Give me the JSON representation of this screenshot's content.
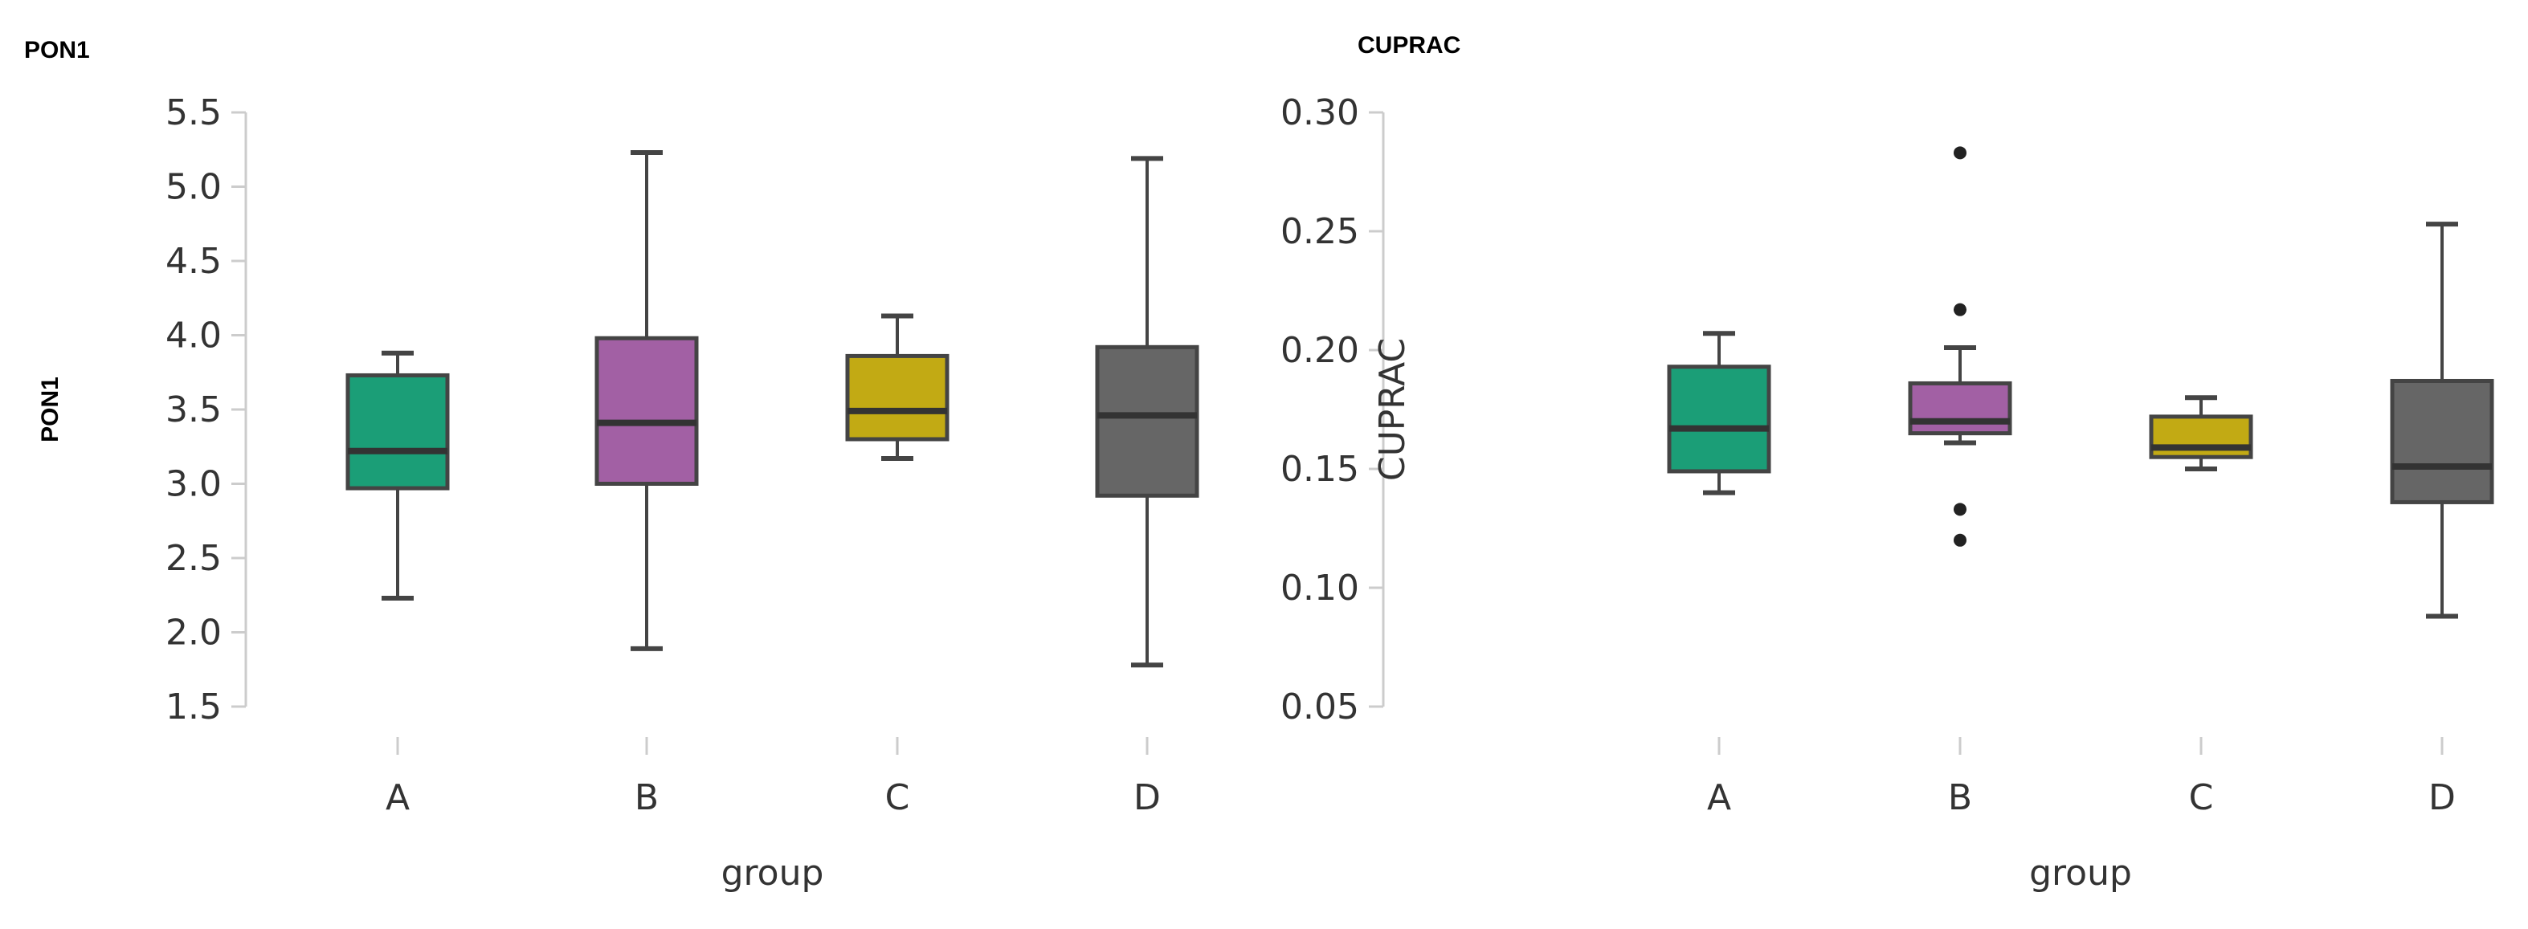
{
  "chart_data": [
    {
      "type": "box",
      "title": "PON1",
      "xlabel": "group",
      "ylabel": "PON1",
      "ylim": [
        1.5,
        5.5
      ],
      "yticks": [
        "1.5",
        "2.0",
        "2.5",
        "3.0",
        "3.5",
        "4.0",
        "4.5",
        "5.0",
        "5.5"
      ],
      "categories": [
        "A",
        "B",
        "C",
        "D"
      ],
      "colors": [
        "#1b9e77",
        "#a260a4",
        "#c2aa14",
        "#666666"
      ],
      "boxes": [
        {
          "whisker_low": 2.23,
          "q1": 2.97,
          "median": 3.22,
          "q3": 3.73,
          "whisker_high": 3.88,
          "outliers": []
        },
        {
          "whisker_low": 1.89,
          "q1": 3.0,
          "median": 3.41,
          "q3": 3.98,
          "whisker_high": 5.23,
          "outliers": []
        },
        {
          "whisker_low": 3.17,
          "q1": 3.3,
          "median": 3.49,
          "q3": 3.86,
          "whisker_high": 4.13,
          "outliers": []
        },
        {
          "whisker_low": 1.78,
          "q1": 2.92,
          "median": 3.46,
          "q3": 3.92,
          "whisker_high": 5.19,
          "outliers": []
        }
      ],
      "grid": false
    },
    {
      "type": "box",
      "title": "CUPRAC",
      "xlabel": "group",
      "ylabel": "CUPRAC",
      "ylim": [
        0.05,
        0.3
      ],
      "yticks": [
        "0.05",
        "0.10",
        "0.15",
        "0.20",
        "0.25",
        "0.30"
      ],
      "categories": [
        "A",
        "B",
        "C",
        "D"
      ],
      "colors": [
        "#1b9e77",
        "#a260a4",
        "#c2aa14",
        "#666666"
      ],
      "boxes": [
        {
          "whisker_low": 0.14,
          "q1": 0.149,
          "median": 0.167,
          "q3": 0.193,
          "whisker_high": 0.207,
          "outliers": []
        },
        {
          "whisker_low": 0.161,
          "q1": 0.165,
          "median": 0.17,
          "q3": 0.186,
          "whisker_high": 0.201,
          "outliers": [
            0.283,
            0.217,
            0.133,
            0.12
          ]
        },
        {
          "whisker_low": 0.15,
          "q1": 0.155,
          "median": 0.159,
          "q3": 0.172,
          "whisker_high": 0.18,
          "outliers": []
        },
        {
          "whisker_low": 0.088,
          "q1": 0.136,
          "median": 0.151,
          "q3": 0.187,
          "whisker_high": 0.253,
          "outliers": []
        }
      ],
      "grid": false
    }
  ]
}
